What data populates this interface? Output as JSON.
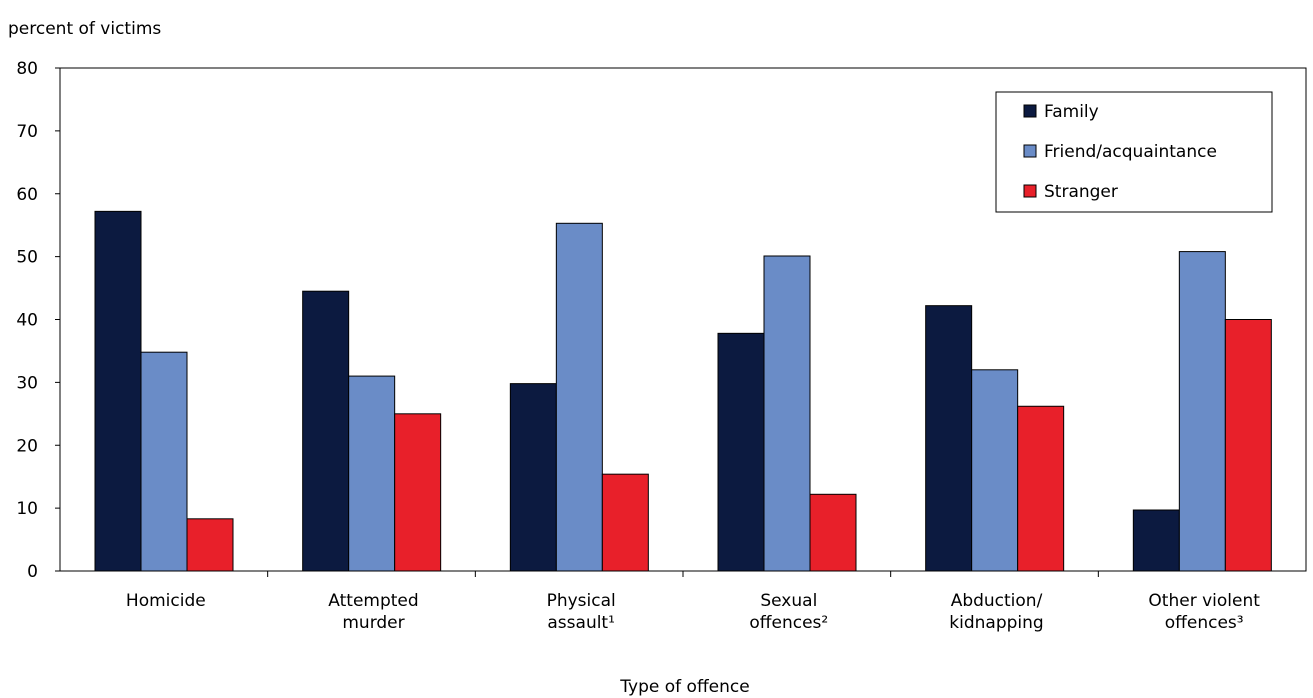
{
  "chart_data": {
    "type": "bar",
    "ylabel": "percent of victims",
    "xlabel": "Type of offence",
    "ylim": [
      0,
      80
    ],
    "yticks": [
      0,
      10,
      20,
      30,
      40,
      50,
      60,
      70,
      80
    ],
    "grid": false,
    "legend_position": "top-right",
    "categories": [
      [
        "Homicide"
      ],
      [
        "Attempted",
        "murder"
      ],
      [
        "Physical",
        "assault¹"
      ],
      [
        "Sexual",
        "offences²"
      ],
      [
        "Abduction/",
        "kidnapping"
      ],
      [
        "Other violent",
        "offences³"
      ]
    ],
    "series": [
      {
        "name": "Family",
        "color": "#0c1a40",
        "values": [
          57.2,
          44.5,
          29.8,
          37.8,
          42.2,
          9.7
        ]
      },
      {
        "name": "Friend/acquaintance",
        "color": "#6a8cc7",
        "values": [
          34.8,
          31.0,
          55.3,
          50.1,
          32.0,
          50.8
        ]
      },
      {
        "name": "Stranger",
        "color": "#e8202a",
        "values": [
          8.3,
          25.0,
          15.4,
          12.2,
          26.2,
          40.0
        ]
      }
    ]
  }
}
